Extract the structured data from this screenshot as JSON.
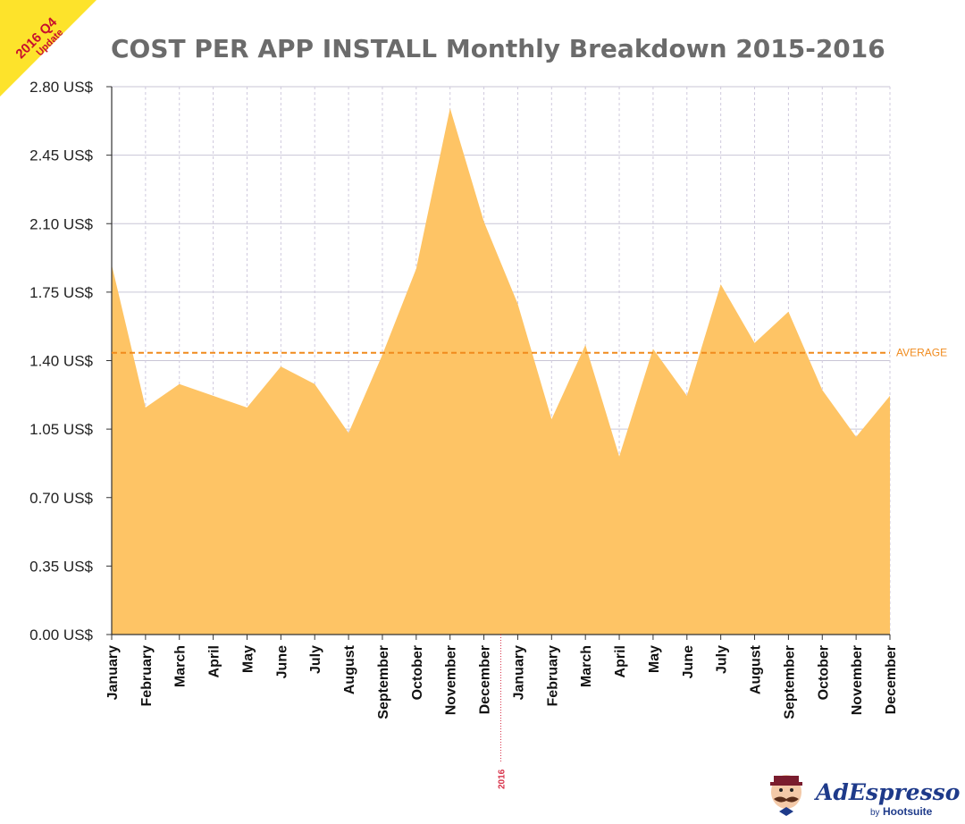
{
  "colors": {
    "area": "#fec465",
    "average": "#f08a1c",
    "title": "#6b6b6b",
    "grid_h": "#c9c6d6",
    "grid_v": "#cfc9dd",
    "axis": "#333333",
    "ribbon": "#fde32b",
    "ribbon_text": "#c8102e",
    "year_marker": "#d8334a",
    "brand": "#1e3a8a"
  },
  "ribbon": {
    "line1": "2016 Q4",
    "line2": "Update"
  },
  "brand": {
    "name": "AdEspresso",
    "by": "by",
    "parent": "Hootsuite"
  },
  "chart_data": {
    "type": "area",
    "title": "COST PER APP INSTALL Monthly Breakdown 2015-2016",
    "xlabel": "",
    "ylabel": "",
    "ylim": [
      0,
      2.8
    ],
    "yticks": [
      0,
      0.35,
      0.7,
      1.05,
      1.4,
      1.75,
      2.1,
      2.45,
      2.8
    ],
    "ytick_labels": [
      "0.00 US$",
      "0.35 US$",
      "0.70 US$",
      "1.05 US$",
      "1.40 US$",
      "1.75 US$",
      "2.10 US$",
      "2.45 US$",
      "2.80 US$"
    ],
    "categories": [
      "January",
      "February",
      "March",
      "April",
      "May",
      "June",
      "July",
      "August",
      "September",
      "October",
      "November",
      "December",
      "January",
      "February",
      "March",
      "April",
      "May",
      "June",
      "July",
      "August",
      "September",
      "October",
      "November",
      "December"
    ],
    "series": [
      {
        "name": "Cost per app install",
        "values": [
          1.89,
          1.16,
          1.28,
          1.22,
          1.16,
          1.37,
          1.28,
          1.03,
          1.43,
          1.87,
          2.69,
          2.11,
          1.69,
          1.1,
          1.48,
          0.91,
          1.46,
          1.22,
          1.79,
          1.49,
          1.65,
          1.25,
          1.01,
          1.22
        ]
      }
    ],
    "average": {
      "label": "AVERAGE",
      "value": 1.44
    },
    "year_marker": {
      "label": "2016",
      "after_index": 11
    },
    "grid": true
  }
}
